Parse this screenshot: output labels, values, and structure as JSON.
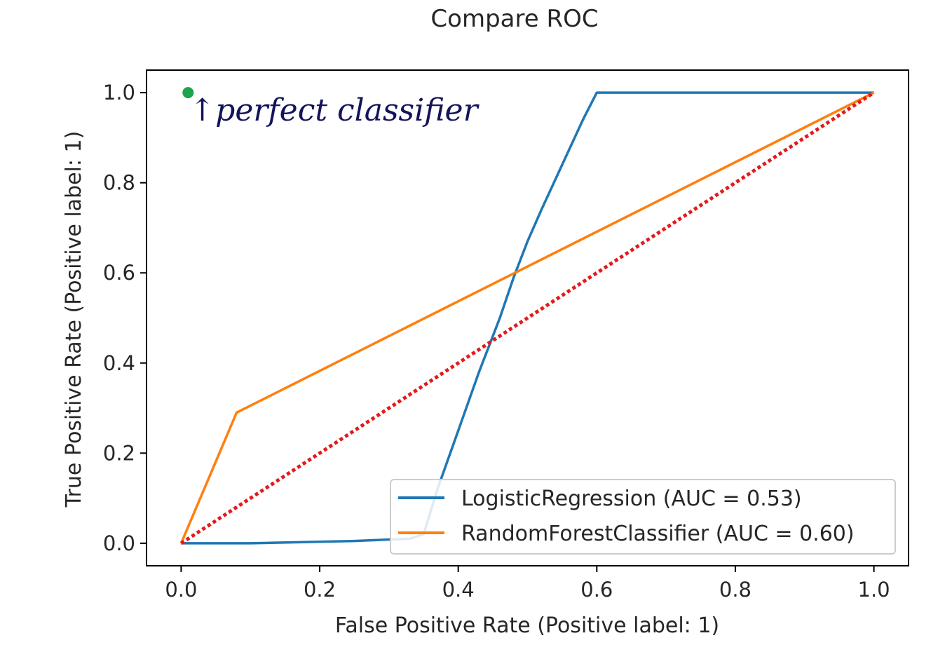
{
  "chart_data": {
    "type": "line",
    "title": "Compare ROC",
    "xlabel": "False Positive Rate (Positive label: 1)",
    "ylabel": "True Positive Rate (Positive label: 1)",
    "xlim": [
      -0.05,
      1.05
    ],
    "ylim": [
      -0.05,
      1.05
    ],
    "xticks": [
      0.0,
      0.2,
      0.4,
      0.6,
      0.8,
      1.0
    ],
    "yticks": [
      0.0,
      0.2,
      0.4,
      0.6,
      0.8,
      1.0
    ],
    "xtick_labels": [
      "0.0",
      "0.2",
      "0.4",
      "0.6",
      "0.8",
      "1.0"
    ],
    "ytick_labels": [
      "0.0",
      "0.2",
      "0.4",
      "0.6",
      "0.8",
      "1.0"
    ],
    "grid": false,
    "legend_position": "lower-right",
    "series": [
      {
        "name": "LogisticRegression (AUC = 0.53)",
        "color": "#1f77b4",
        "x": [
          0.0,
          0.1,
          0.25,
          0.33,
          0.35,
          0.37,
          0.4,
          0.43,
          0.46,
          0.48,
          0.5,
          0.52,
          0.55,
          0.58,
          0.6,
          1.0
        ],
        "y": [
          0.0,
          0.0,
          0.005,
          0.01,
          0.02,
          0.12,
          0.25,
          0.38,
          0.5,
          0.59,
          0.67,
          0.74,
          0.84,
          0.94,
          1.0,
          1.0
        ]
      },
      {
        "name": "RandomForestClassifier (AUC = 0.60)",
        "color": "#ff7f0e",
        "x": [
          0.0,
          0.08,
          1.0
        ],
        "y": [
          0.0,
          0.29,
          1.0
        ]
      },
      {
        "name": "",
        "color": "#e31a1c",
        "style": "dotted",
        "x": [
          0.0,
          1.0
        ],
        "y": [
          0.0,
          1.0
        ]
      }
    ],
    "annotations": [
      {
        "text": "↑perfect classifier",
        "x": 0.01,
        "y": 1.0,
        "marker_color": "#1aa64b"
      }
    ]
  }
}
